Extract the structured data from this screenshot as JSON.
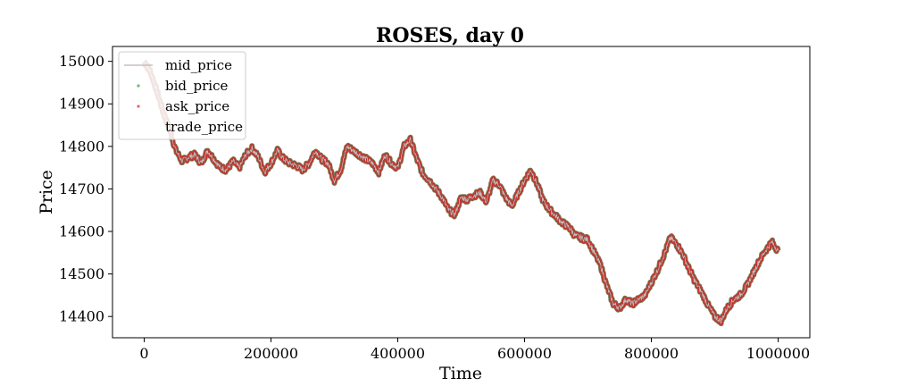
{
  "chart_data": {
    "type": "line",
    "title": "ROSES, day 0",
    "xlabel": "Time",
    "ylabel": "Price",
    "xlim": [
      -50000,
      1050000
    ],
    "ylim": [
      14350,
      15035
    ],
    "xticks": [
      0,
      200000,
      400000,
      600000,
      800000,
      1000000
    ],
    "xtick_labels": [
      "0",
      "200000",
      "400000",
      "600000",
      "800000",
      "1000000"
    ],
    "yticks": [
      14400,
      14500,
      14600,
      14700,
      14800,
      14900,
      15000
    ],
    "ytick_labels": [
      "14400",
      "14500",
      "14600",
      "14700",
      "14800",
      "14900",
      "15000"
    ],
    "grid": false,
    "legend_position": "top-left",
    "series": [
      {
        "name": "mid_price",
        "style": "line",
        "color": "#c8c0c0"
      },
      {
        "name": "bid_price",
        "style": "scatter",
        "color": "#2ca02c"
      },
      {
        "name": "ask_price",
        "style": "scatter",
        "color": "#d62728"
      },
      {
        "name": "trade_price",
        "style": "scatter",
        "color": "#000000"
      }
    ],
    "x": [
      0,
      10000,
      20000,
      30000,
      40000,
      50000,
      60000,
      70000,
      80000,
      90000,
      100000,
      110000,
      120000,
      130000,
      140000,
      150000,
      160000,
      170000,
      180000,
      190000,
      200000,
      210000,
      220000,
      230000,
      240000,
      250000,
      260000,
      270000,
      280000,
      290000,
      300000,
      310000,
      320000,
      330000,
      340000,
      350000,
      360000,
      370000,
      380000,
      390000,
      400000,
      410000,
      420000,
      430000,
      440000,
      450000,
      460000,
      470000,
      480000,
      490000,
      500000,
      510000,
      520000,
      530000,
      540000,
      550000,
      560000,
      570000,
      580000,
      590000,
      600000,
      610000,
      620000,
      630000,
      640000,
      650000,
      660000,
      670000,
      680000,
      690000,
      700000,
      710000,
      720000,
      730000,
      740000,
      750000,
      760000,
      770000,
      780000,
      790000,
      800000,
      810000,
      820000,
      830000,
      840000,
      850000,
      860000,
      870000,
      880000,
      890000,
      900000,
      910000,
      920000,
      930000,
      940000,
      950000,
      960000,
      970000,
      980000,
      990000,
      1000000
    ],
    "mid_price": [
      15000,
      14975,
      14930,
      14880,
      14840,
      14790,
      14765,
      14775,
      14780,
      14760,
      14790,
      14770,
      14750,
      14745,
      14765,
      14750,
      14780,
      14795,
      14775,
      14740,
      14760,
      14790,
      14770,
      14760,
      14755,
      14745,
      14760,
      14790,
      14770,
      14760,
      14720,
      14745,
      14800,
      14790,
      14780,
      14770,
      14760,
      14740,
      14780,
      14760,
      14750,
      14800,
      14815,
      14770,
      14735,
      14720,
      14700,
      14680,
      14650,
      14640,
      14680,
      14675,
      14685,
      14690,
      14670,
      14720,
      14710,
      14680,
      14660,
      14690,
      14720,
      14745,
      14710,
      14670,
      14650,
      14635,
      14620,
      14610,
      14590,
      14585,
      14580,
      14550,
      14520,
      14470,
      14430,
      14420,
      14440,
      14430,
      14440,
      14450,
      14480,
      14510,
      14545,
      14585,
      14570,
      14545,
      14510,
      14480,
      14455,
      14425,
      14400,
      14390,
      14420,
      14440,
      14450,
      14470,
      14500,
      14530,
      14555,
      14575,
      14555
    ]
  }
}
